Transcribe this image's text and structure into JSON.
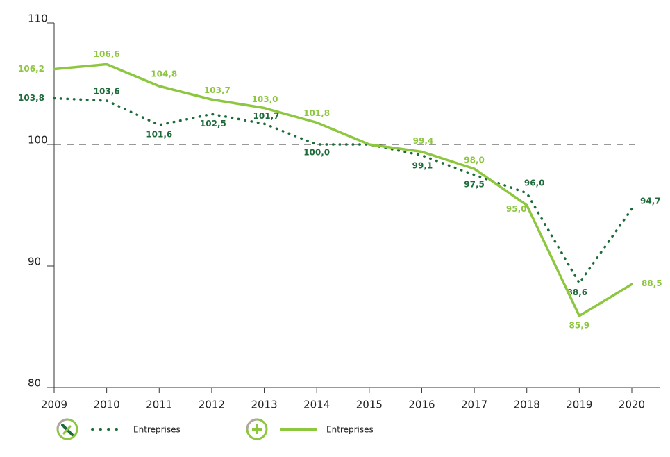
{
  "chart_data": {
    "type": "line",
    "categories": [
      "2009",
      "2010",
      "2011",
      "2012",
      "2013",
      "2014",
      "2015",
      "2016",
      "2017",
      "2018",
      "2019",
      "2020"
    ],
    "series": [
      {
        "name": "Entreprises",
        "color": "#1e6b3a",
        "style": "dotted",
        "values": [
          103.8,
          103.6,
          101.6,
          102.5,
          101.7,
          100.0,
          100.0,
          99.1,
          97.5,
          96.0,
          88.6,
          94.7
        ],
        "value_labels": [
          "103,8",
          "103,6",
          "101,6",
          "102,5",
          "101,7",
          "100,0",
          null,
          "99,1",
          "97,5",
          "96,0",
          "88,6",
          "94,7"
        ]
      },
      {
        "name": "Entreprises",
        "color": "#8dc63f",
        "style": "solid",
        "values": [
          106.2,
          106.6,
          104.8,
          103.7,
          103.0,
          101.8,
          100.0,
          99.4,
          98.0,
          95.0,
          85.9,
          88.5
        ],
        "value_labels": [
          "106,2",
          "106,6",
          "104,8",
          "103,7",
          "103,0",
          "101,8",
          null,
          "99,4",
          "98,0",
          "95,0",
          "85,9",
          "88,5"
        ]
      }
    ],
    "ylim": [
      80,
      110
    ],
    "yticks": [
      80,
      90,
      100,
      110
    ],
    "reference_line": 100
  }
}
